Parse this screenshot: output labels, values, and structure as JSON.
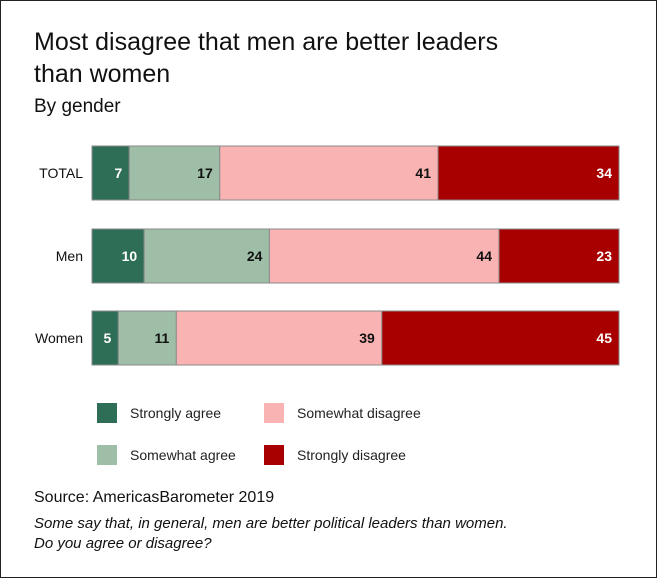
{
  "title_line1": "Most disagree that men are better leaders",
  "title_line2": "than women",
  "subtitle": "By gender",
  "source": "Source: AmericasBarometer 2019",
  "note_line1": "Some say that, in general, men are better political leaders than women.",
  "note_line2": "Do you agree or disagree?",
  "chart_data": {
    "type": "bar",
    "orientation": "horizontal",
    "stacked": true,
    "categories": [
      "TOTAL",
      "Men",
      "Women"
    ],
    "series": [
      {
        "name": "Strongly agree",
        "color": "#2e6e56",
        "label_color": "#ffffff",
        "values": [
          7,
          10,
          5
        ]
      },
      {
        "name": "Somewhat agree",
        "color": "#9ebea7",
        "label_color": "#111111",
        "values": [
          17,
          24,
          11
        ]
      },
      {
        "name": "Somewhat disagree",
        "color": "#f9b3b3",
        "label_color": "#111111",
        "values": [
          41,
          44,
          39
        ]
      },
      {
        "name": "Strongly disagree",
        "color": "#a80000",
        "label_color": "#ffffff",
        "values": [
          34,
          23,
          45
        ]
      }
    ],
    "legend_placement": "bottom",
    "grid": false
  }
}
